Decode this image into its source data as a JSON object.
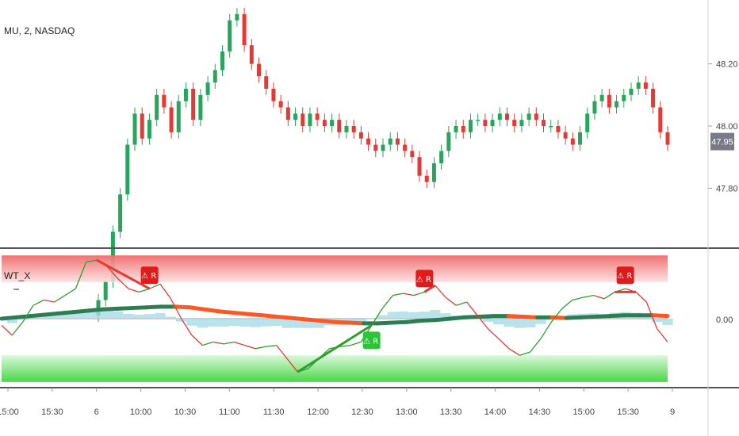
{
  "chart_data": [
    {
      "type": "candlestick",
      "symbol_label": "MU, 2, NASDAQ",
      "price_ticks": [
        "48.20",
        "48.00",
        "47.80"
      ],
      "price_tick_values": [
        48.2,
        48.0,
        47.8
      ],
      "last_price": "47.95",
      "last_price_value": 47.95,
      "ylim": [
        47.62,
        48.38
      ],
      "colors": {
        "up": "#26a65b",
        "down": "#e53935",
        "badge": "#787b86"
      },
      "closes": [
        47.44,
        47.5,
        47.66,
        47.78,
        47.94,
        48.04,
        47.96,
        48.02,
        48.1,
        48.06,
        47.98,
        48.08,
        48.12,
        48.02,
        48.1,
        48.14,
        48.18,
        48.24,
        48.34,
        48.36,
        48.26,
        48.2,
        48.16,
        48.12,
        48.08,
        48.06,
        48.02,
        48.04,
        48.0,
        48.04,
        48.02,
        48.0,
        48.02,
        47.98,
        48.0,
        47.98,
        47.96,
        47.94,
        47.92,
        47.94,
        47.96,
        47.94,
        47.92,
        47.9,
        47.84,
        47.82,
        47.88,
        47.92,
        47.98,
        48.0,
        47.98,
        48.02,
        48.02,
        48.0,
        48.02,
        48.04,
        48.02,
        48.0,
        48.02,
        48.04,
        48.02,
        48.0,
        48.0,
        47.98,
        47.96,
        47.94,
        47.98,
        48.04,
        48.08,
        48.1,
        48.06,
        48.08,
        48.1,
        48.12,
        48.14,
        48.12,
        48.06,
        47.98,
        47.94
      ]
    },
    {
      "type": "line",
      "indicator_label": "WT_X",
      "zero_tick": "0.00",
      "ylim": [
        -100,
        100
      ],
      "zones": {
        "overbought": [
          55,
          95
        ],
        "oversold": [
          -95,
          -55
        ]
      },
      "colors": {
        "wt1": "#2e9e2e",
        "wt1_falling": "#e53935",
        "signal_up": "#2e7d52",
        "signal_down": "#ff5722",
        "histogram": "#a8dbe6",
        "ob_zone": "#f08080",
        "os_zone": "#5fd35f"
      },
      "wt1": [
        -10,
        -25,
        -5,
        20,
        28,
        25,
        35,
        45,
        85,
        88,
        78,
        60,
        45,
        40,
        45,
        52,
        30,
        0,
        -25,
        -40,
        -35,
        -38,
        -35,
        -40,
        -45,
        -42,
        -40,
        -60,
        -80,
        -75,
        -60,
        -45,
        -42,
        -40,
        -35,
        -10,
        15,
        35,
        38,
        35,
        40,
        50,
        32,
        20,
        25,
        5,
        -15,
        -30,
        -45,
        -55,
        -50,
        -30,
        -5,
        15,
        28,
        32,
        35,
        30,
        40,
        45,
        40,
        25,
        -15,
        -35
      ],
      "signal": [
        0,
        2,
        4,
        6,
        8,
        10,
        12,
        14,
        15,
        16,
        17,
        18,
        18,
        17,
        14,
        11,
        9,
        7,
        5,
        3,
        1,
        -1,
        -3,
        -5,
        -6,
        -7,
        -7,
        -6,
        -5,
        -3,
        -2,
        0,
        2,
        3,
        4,
        4,
        3,
        2,
        2,
        1,
        2,
        3,
        4,
        5,
        5,
        5,
        4
      ],
      "signals": [
        {
          "label": "R",
          "glyph": "⚠",
          "type": "bearish"
        },
        {
          "label": "R",
          "glyph": "⚠",
          "type": "bearish"
        },
        {
          "label": "R",
          "glyph": "⚠",
          "type": "bearish"
        },
        {
          "label": "R",
          "glyph": "⚠",
          "type": "bullish"
        }
      ]
    }
  ],
  "time_axis": {
    "labels": [
      "15:00",
      "15:30",
      "6",
      "10:00",
      "10:30",
      "11:00",
      "11:30",
      "12:00",
      "12:30",
      "13:00",
      "13:30",
      "14:00",
      "14:30",
      "15:00",
      "15:30",
      "9"
    ]
  }
}
